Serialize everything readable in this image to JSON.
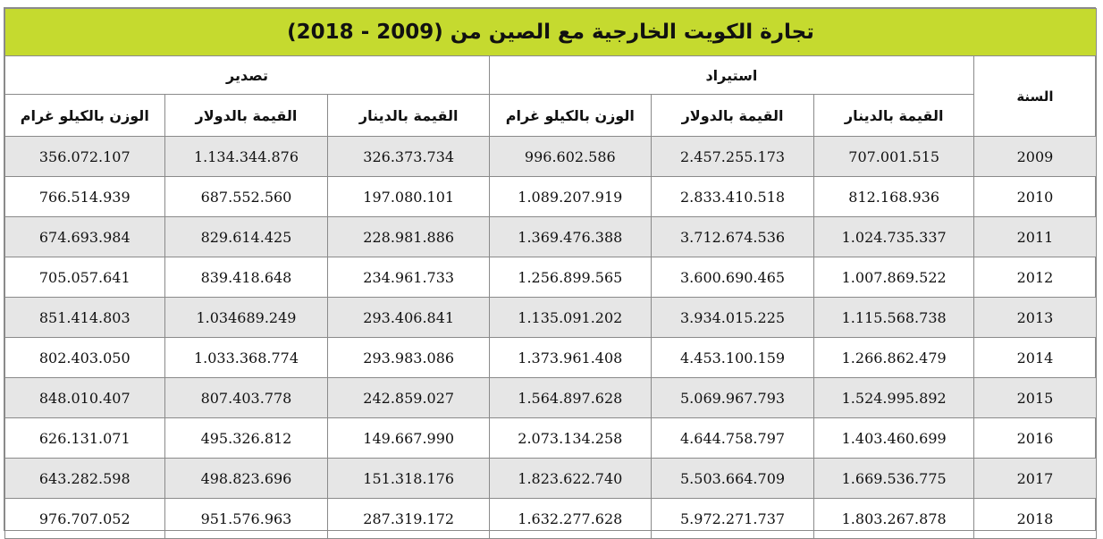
{
  "title": "تجارة الكويت الخارجية مع الصين من (2009 - 2018)",
  "headers": {
    "year": "السنة",
    "import": "استيراد",
    "export": "تصدير",
    "value_dinar": "القيمة بالدينار",
    "value_dollar": "القيمة بالدولار",
    "weight_kg": "الوزن بالكيلو غرام"
  },
  "rows": [
    {
      "year": "2009",
      "imp_dinar": "707.001.515",
      "imp_dollar": "2.457.255.173",
      "imp_kg": "996.602.586",
      "exp_dinar": "326.373.734",
      "exp_dollar": "1.134.344.876",
      "exp_kg": "356.072.107"
    },
    {
      "year": "2010",
      "imp_dinar": "812.168.936",
      "imp_dollar": "2.833.410.518",
      "imp_kg": "1.089.207.919",
      "exp_dinar": "197.080.101",
      "exp_dollar": "687.552.560",
      "exp_kg": "766.514.939"
    },
    {
      "year": "2011",
      "imp_dinar": "1.024.735.337",
      "imp_dollar": "3.712.674.536",
      "imp_kg": "1.369.476.388",
      "exp_dinar": "228.981.886",
      "exp_dollar": "829.614.425",
      "exp_kg": "674.693.984"
    },
    {
      "year": "2012",
      "imp_dinar": "1.007.869.522",
      "imp_dollar": "3.600.690.465",
      "imp_kg": "1.256.899.565",
      "exp_dinar": "234.961.733",
      "exp_dollar": "839.418.648",
      "exp_kg": "705.057.641"
    },
    {
      "year": "2013",
      "imp_dinar": "1.115.568.738",
      "imp_dollar": "3.934.015.225",
      "imp_kg": "1.135.091.202",
      "exp_dinar": "293.406.841",
      "exp_dollar": "1.034689.249",
      "exp_kg": "851.414.803"
    },
    {
      "year": "2014",
      "imp_dinar": "1.266.862.479",
      "imp_dollar": "4.453.100.159",
      "imp_kg": "1.373.961.408",
      "exp_dinar": "293.983.086",
      "exp_dollar": "1.033.368.774",
      "exp_kg": "802.403.050"
    },
    {
      "year": "2015",
      "imp_dinar": "1.524.995.892",
      "imp_dollar": "5.069.967.793",
      "imp_kg": "1.564.897.628",
      "exp_dinar": "242.859.027",
      "exp_dollar": "807.403.778",
      "exp_kg": "848.010.407"
    },
    {
      "year": "2016",
      "imp_dinar": "1.403.460.699",
      "imp_dollar": "4.644.758.797",
      "imp_kg": "2.073.134.258",
      "exp_dinar": "149.667.990",
      "exp_dollar": "495.326.812",
      "exp_kg": "626.131.071"
    },
    {
      "year": "2017",
      "imp_dinar": "1.669.536.775",
      "imp_dollar": "5.503.664.709",
      "imp_kg": "1.823.622.740",
      "exp_dinar": "151.318.176",
      "exp_dollar": "498.823.696",
      "exp_kg": "643.282.598"
    },
    {
      "year": "2018",
      "imp_dinar": "1.803.267.878",
      "imp_dollar": "5.972.271.737",
      "imp_kg": "1.632.277.628",
      "exp_dinar": "287.319.172",
      "exp_dollar": "951.576.963",
      "exp_kg": "976.707.052"
    }
  ]
}
